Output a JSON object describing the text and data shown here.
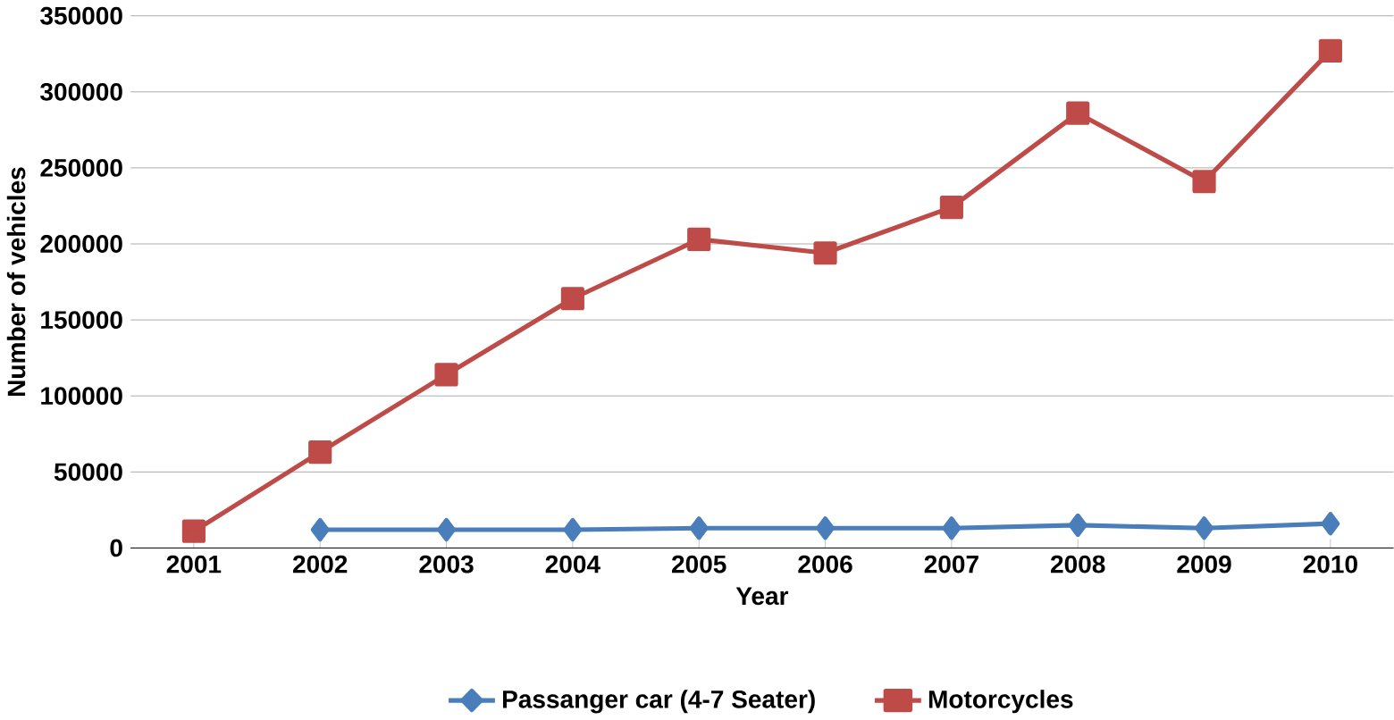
{
  "chart_data": {
    "type": "line",
    "xlabel": "Year",
    "ylabel": "Number of vehicles",
    "categories": [
      "2001",
      "2002",
      "2003",
      "2004",
      "2005",
      "2006",
      "2007",
      "2008",
      "2009",
      "2010"
    ],
    "series": [
      {
        "name": "Passanger car (4-7 Seater)",
        "color": "#4a7ebb",
        "marker": "diamond",
        "values": [
          null,
          12000,
          12000,
          12000,
          13000,
          13000,
          13000,
          15000,
          13000,
          16000
        ]
      },
      {
        "name": "Motorcycles",
        "color": "#be4b48",
        "marker": "square",
        "values": [
          11000,
          63000,
          114000,
          164000,
          203000,
          194000,
          224000,
          286000,
          241000,
          327000
        ]
      }
    ],
    "ylim": [
      0,
      350000
    ],
    "yticks": [
      0,
      50000,
      100000,
      150000,
      200000,
      250000,
      300000,
      350000
    ],
    "grid": "y",
    "legend": "bottom"
  }
}
